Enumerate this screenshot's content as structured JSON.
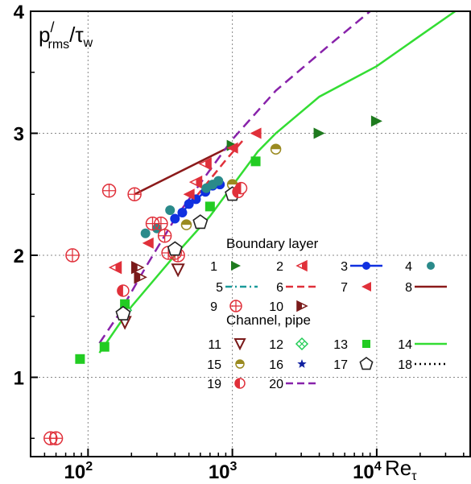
{
  "chart_data": {
    "type": "scatter",
    "ylabel_main": "p",
    "ylabel_prime": "/",
    "ylabel_sub": "rms",
    "ylabel_div": "/τ",
    "ylabel_sub2": "w",
    "xlabel_main": "Re",
    "xlabel_sub": "τ",
    "xscale": "log",
    "xlim": [
      40,
      45000
    ],
    "ylim": [
      0.35,
      4.0
    ],
    "grid": true,
    "y_ticks": [
      {
        "value": 1,
        "label": "1"
      },
      {
        "value": 2,
        "label": "2"
      },
      {
        "value": 3,
        "label": "3"
      },
      {
        "value": 4,
        "label": "4"
      }
    ],
    "x_ticks": [
      {
        "value": 100,
        "base": "10",
        "exp": "2"
      },
      {
        "value": 1000,
        "base": "10",
        "exp": "3"
      },
      {
        "value": 10000,
        "base": "10",
        "exp": "4"
      }
    ],
    "legend": {
      "placement": "center-right",
      "group_bl": "Boundary layer",
      "group_ch": "Channel, pipe",
      "entries": [
        {
          "id": "1",
          "label": "1"
        },
        {
          "id": "2",
          "label": "2"
        },
        {
          "id": "3",
          "label": "3"
        },
        {
          "id": "4",
          "label": "4"
        },
        {
          "id": "5",
          "label": "5"
        },
        {
          "id": "6",
          "label": "6"
        },
        {
          "id": "7",
          "label": "7"
        },
        {
          "id": "8",
          "label": "8"
        },
        {
          "id": "9",
          "label": "9"
        },
        {
          "id": "10",
          "label": "10"
        },
        {
          "id": "11",
          "label": "11"
        },
        {
          "id": "12",
          "label": "12"
        },
        {
          "id": "13",
          "label": "13"
        },
        {
          "id": "14",
          "label": "14"
        },
        {
          "id": "15",
          "label": "15"
        },
        {
          "id": "16",
          "label": "16"
        },
        {
          "id": "17",
          "label": "17"
        },
        {
          "id": "18",
          "label": "18"
        },
        {
          "id": "19",
          "label": "19"
        },
        {
          "id": "20",
          "label": "20"
        }
      ]
    },
    "series": [
      {
        "id": "1",
        "marker": "tri-right",
        "color": "#1e7a1e",
        "points": [
          [
            1000,
            2.9
          ],
          [
            4000,
            3.0
          ],
          [
            10000,
            3.1
          ]
        ]
      },
      {
        "id": "2",
        "marker": "tri-left-half",
        "color": "#e0303a",
        "points": [
          [
            155,
            1.9
          ],
          [
            560,
            2.6
          ],
          [
            650,
            2.75
          ]
        ]
      },
      {
        "id": "3",
        "marker": "circle",
        "color": "#1030e0",
        "line": true,
        "points": [
          [
            400,
            2.3
          ],
          [
            450,
            2.35
          ],
          [
            500,
            2.42
          ],
          [
            560,
            2.46
          ],
          [
            650,
            2.52
          ],
          [
            730,
            2.57
          ],
          [
            820,
            2.58
          ]
        ]
      },
      {
        "id": "4",
        "marker": "circle",
        "color": "#2a8a8a",
        "points": [
          [
            250,
            2.18
          ],
          [
            300,
            2.22
          ],
          [
            370,
            2.37
          ],
          [
            660,
            2.55
          ],
          [
            730,
            2.58
          ],
          [
            800,
            2.61
          ]
        ]
      },
      {
        "id": "6",
        "marker": "dash-line",
        "color": "#e0303a",
        "points": [
          [
            560,
            2.48
          ],
          [
            900,
            2.78
          ],
          [
            1200,
            2.95
          ]
        ]
      },
      {
        "id": "7",
        "marker": "tri-left",
        "color": "#e0303a",
        "points": [
          [
            1450,
            3.0
          ],
          [
            1000,
            2.88
          ],
          [
            500,
            2.5
          ],
          [
            260,
            2.1
          ]
        ]
      },
      {
        "id": "8",
        "marker": "line",
        "color": "#8b1a1a",
        "points": [
          [
            210,
            2.5
          ],
          [
            1000,
            2.9
          ]
        ]
      },
      {
        "id": "9",
        "marker": "circle-plus",
        "color": "#e0303a",
        "points": [
          [
            55,
            0.5
          ],
          [
            60,
            0.5
          ],
          [
            78,
            2.0
          ],
          [
            140,
            2.53
          ],
          [
            210,
            2.5
          ],
          [
            280,
            2.26
          ],
          [
            320,
            2.26
          ],
          [
            340,
            2.16
          ],
          [
            360,
            2.02
          ],
          [
            400,
            2.02
          ],
          [
            420,
            2.0
          ]
        ]
      },
      {
        "id": "10",
        "marker": "tri-right-half",
        "color": "#7a1a1a",
        "points": [
          [
            220,
            1.9
          ],
          [
            230,
            1.82
          ]
        ]
      },
      {
        "id": "11",
        "marker": "tri-down",
        "color": "#7a1a1a",
        "points": [
          [
            180,
            1.45
          ],
          [
            420,
            1.88
          ]
        ]
      },
      {
        "id": "12",
        "marker": "diamond-cross",
        "color": "#22cc55",
        "points": [
          [
            180,
            1.55
          ]
        ]
      },
      {
        "id": "13",
        "marker": "square",
        "color": "#22cc22",
        "points": [
          [
            88,
            1.15
          ],
          [
            130,
            1.25
          ],
          [
            180,
            1.6
          ],
          [
            700,
            2.4
          ],
          [
            1450,
            2.77
          ]
        ]
      },
      {
        "id": "14",
        "marker": "line",
        "color": "#33dd33",
        "points": [
          [
            120,
            1.2
          ],
          [
            200,
            1.58
          ],
          [
            400,
            2.0
          ],
          [
            700,
            2.32
          ],
          [
            1000,
            2.57
          ],
          [
            1500,
            2.85
          ],
          [
            2000,
            3.0
          ],
          [
            4000,
            3.3
          ],
          [
            10000,
            3.55
          ],
          [
            20000,
            3.8
          ],
          [
            35000,
            4.0
          ]
        ]
      },
      {
        "id": "15",
        "marker": "circle-half-h",
        "color": "#9a8a20",
        "points": [
          [
            480,
            2.25
          ],
          [
            1000,
            2.58
          ],
          [
            2000,
            2.87
          ]
        ]
      },
      {
        "id": "16",
        "marker": "star",
        "color": "#1020a0",
        "points": [
          [
            180,
            1.5
          ]
        ]
      },
      {
        "id": "17",
        "marker": "pentagon",
        "color": "#222222",
        "points": [
          [
            175,
            1.52
          ],
          [
            400,
            2.05
          ],
          [
            600,
            2.27
          ],
          [
            1000,
            2.5
          ]
        ]
      },
      {
        "id": "19",
        "marker": "circle-half-v",
        "color": "#e0303a",
        "points": [
          [
            175,
            1.71
          ],
          [
            1100,
            2.52
          ],
          [
            1150,
            2.55
          ]
        ]
      },
      {
        "id": "20",
        "marker": "dash-line",
        "color": "#8822aa",
        "points": [
          [
            120,
            1.28
          ],
          [
            160,
            1.5
          ],
          [
            250,
            1.9
          ],
          [
            400,
            2.3
          ],
          [
            700,
            2.7
          ],
          [
            1000,
            2.95
          ],
          [
            2000,
            3.35
          ],
          [
            5000,
            3.75
          ],
          [
            9000,
            4.0
          ]
        ]
      }
    ]
  }
}
